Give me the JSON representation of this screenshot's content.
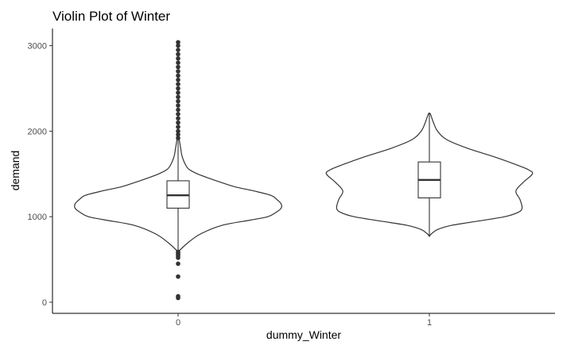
{
  "chart_data": {
    "type": "violin",
    "title": "Violin Plot of Winter",
    "xlabel": "dummy_Winter",
    "ylabel": "demand",
    "categories": [
      "0",
      "1"
    ],
    "ylim": [
      -130,
      3200
    ],
    "yticks": [
      0,
      1000,
      2000,
      3000
    ],
    "grid": false,
    "legend": "none",
    "series": [
      {
        "category": "0",
        "box": {
          "q1": 1100,
          "median": 1250,
          "q3": 1420,
          "whisker_low": 600,
          "whisker_high": 1900
        },
        "density": [
          [
            590,
            0.0
          ],
          [
            700,
            0.1
          ],
          [
            800,
            0.22
          ],
          [
            900,
            0.43
          ],
          [
            960,
            0.7
          ],
          [
            1000,
            0.87
          ],
          [
            1050,
            0.95
          ],
          [
            1100,
            1.0
          ],
          [
            1150,
            1.0
          ],
          [
            1200,
            0.96
          ],
          [
            1250,
            0.9
          ],
          [
            1300,
            0.74
          ],
          [
            1350,
            0.55
          ],
          [
            1400,
            0.42
          ],
          [
            1450,
            0.3
          ],
          [
            1500,
            0.19
          ],
          [
            1550,
            0.11
          ],
          [
            1600,
            0.075
          ],
          [
            1700,
            0.04
          ],
          [
            1800,
            0.025
          ],
          [
            1900,
            0.012
          ],
          [
            2050,
            0.0
          ]
        ],
        "outliers": [
          50,
          70,
          300,
          450,
          520,
          540,
          560,
          575,
          590,
          1920,
          1960,
          2000,
          2050,
          2100,
          2150,
          2200,
          2250,
          2300,
          2350,
          2400,
          2450,
          2500,
          2550,
          2600,
          2650,
          2700,
          2750,
          2800,
          2850,
          2900,
          2950,
          3000,
          3040
        ]
      },
      {
        "category": "1",
        "box": {
          "q1": 1220,
          "median": 1430,
          "q3": 1640,
          "whisker_low": 780,
          "whisker_high": 2210
        },
        "density": [
          [
            770,
            0.0
          ],
          [
            800,
            0.02
          ],
          [
            850,
            0.08
          ],
          [
            900,
            0.22
          ],
          [
            950,
            0.48
          ],
          [
            1000,
            0.73
          ],
          [
            1050,
            0.86
          ],
          [
            1100,
            0.9
          ],
          [
            1200,
            0.88
          ],
          [
            1300,
            0.84
          ],
          [
            1400,
            0.91
          ],
          [
            1500,
            1.0
          ],
          [
            1550,
            0.96
          ],
          [
            1600,
            0.86
          ],
          [
            1700,
            0.63
          ],
          [
            1800,
            0.37
          ],
          [
            1900,
            0.17
          ],
          [
            2000,
            0.08
          ],
          [
            2100,
            0.04
          ],
          [
            2200,
            0.01
          ],
          [
            2210,
            0.0
          ]
        ],
        "outliers": []
      }
    ]
  }
}
